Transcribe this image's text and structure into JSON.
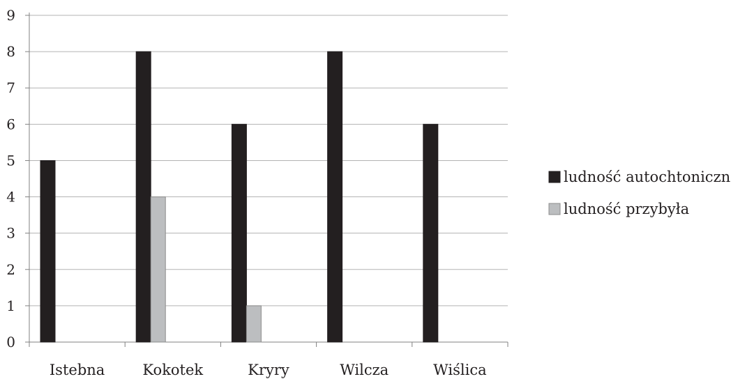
{
  "chart_data": {
    "type": "bar",
    "categories": [
      "Istebna",
      "Kokotek",
      "Kryry",
      "Wilcza",
      "Wiślica"
    ],
    "series": [
      {
        "name": "ludność autochtoniczna",
        "color": "#231f20",
        "values": [
          5,
          8,
          6,
          8,
          6
        ]
      },
      {
        "name": "ludność przybyła",
        "color": "#bcbec0",
        "values": [
          0,
          4,
          1,
          0,
          0
        ]
      }
    ],
    "ylim": [
      0,
      9
    ],
    "yticks": [
      "0",
      "1",
      "2",
      "3",
      "4",
      "5",
      "6",
      "7",
      "8",
      "9"
    ],
    "grid": true,
    "legend_position": "right",
    "title": "",
    "xlabel": "",
    "ylabel": ""
  }
}
